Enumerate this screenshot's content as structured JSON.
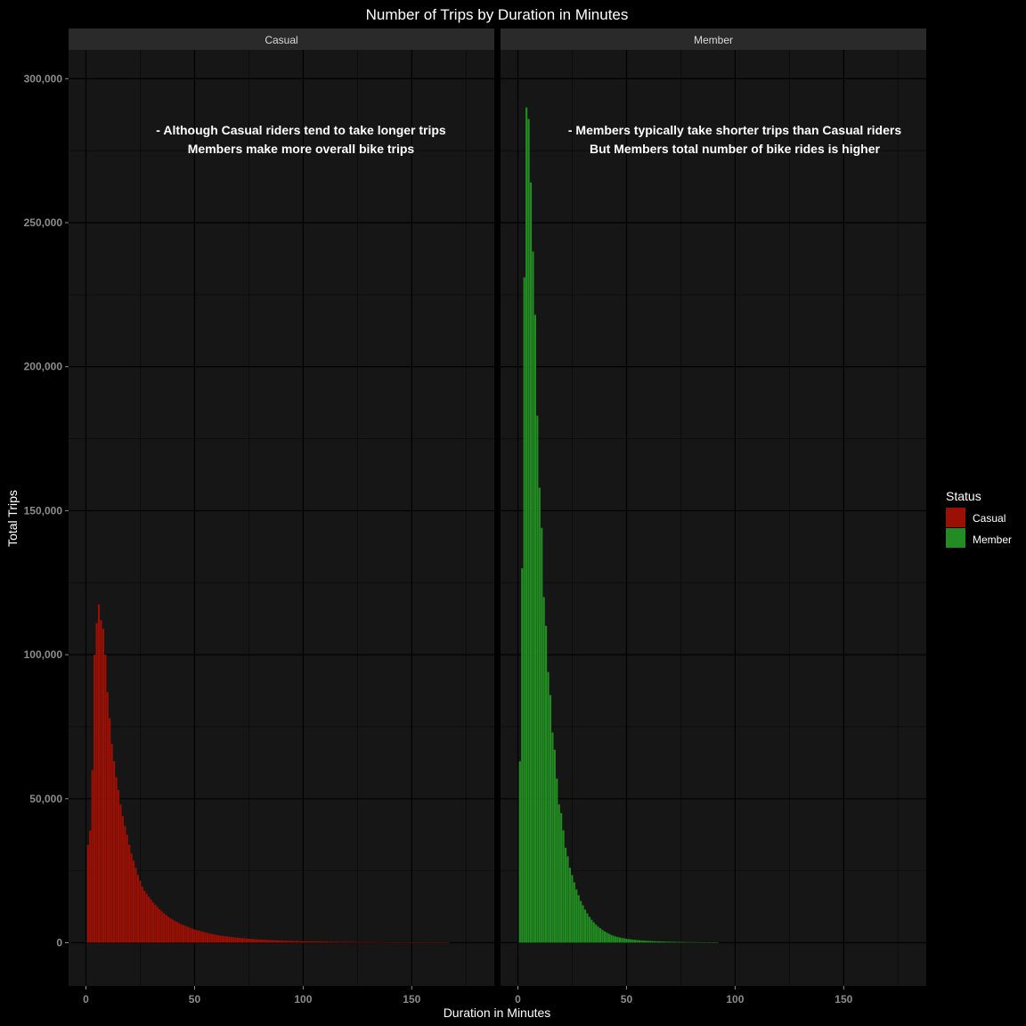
{
  "colors": {
    "background": "#000000",
    "panel": "#161616",
    "strip": "#2a2a2a",
    "grid_major": "#000000",
    "casual": "#9b1004",
    "member": "#228b22"
  },
  "chart_data": {
    "type": "bar",
    "title": "Number of Trips by Duration in Minutes",
    "xlabel": "Duration in Minutes",
    "ylabel": "Total Trips",
    "xlim": [
      -8,
      188
    ],
    "ylim": [
      -15000,
      310000
    ],
    "x_ticks": [
      0,
      50,
      100,
      150
    ],
    "x_tick_labels": [
      "0",
      "50",
      "100",
      "150"
    ],
    "y_ticks": [
      0,
      50000,
      100000,
      150000,
      200000,
      250000,
      300000
    ],
    "y_tick_labels": [
      "0",
      "50,000",
      "100,000",
      "150,000",
      "200,000",
      "250,000",
      "300,000"
    ],
    "grid": true,
    "legend": {
      "title": "Status",
      "position": "right",
      "entries": [
        "Casual",
        "Member"
      ]
    },
    "panels": [
      {
        "name": "Casual",
        "annotation": [
          "- Although Casual riders tend to take longer trips",
          "Members make more overall bike trips"
        ],
        "series_color": "#9b1004",
        "x_start": 1,
        "values": [
          34000,
          39000,
          60000,
          100000,
          111000,
          117500,
          112000,
          109000,
          100000,
          87000,
          78000,
          69000,
          63000,
          57500,
          53000,
          48000,
          44000,
          40500,
          37500,
          34000,
          31000,
          28500,
          26000,
          23500,
          21500,
          19500,
          18000,
          17000,
          16000,
          15000,
          14000,
          13200,
          12400,
          11600,
          10900,
          10200,
          9600,
          9000,
          8500,
          8000,
          7600,
          7200,
          6800,
          6400,
          6100,
          5800,
          5500,
          5200,
          4900,
          4600,
          4400,
          4200,
          4000,
          3800,
          3600,
          3400,
          3200,
          3050,
          2900,
          2750,
          2600,
          2500,
          2400,
          2300,
          2200,
          2100,
          2000,
          1900,
          1820,
          1740,
          1660,
          1590,
          1520,
          1450,
          1390,
          1330,
          1270,
          1210,
          1160,
          1110,
          1060,
          1020,
          980,
          940,
          900,
          860,
          830,
          800,
          770,
          740,
          710,
          685,
          660,
          635,
          610,
          590,
          570,
          550,
          530,
          510,
          495,
          480,
          465,
          450,
          435,
          420,
          408,
          396,
          384,
          372,
          360,
          350,
          340,
          330,
          320,
          310,
          300,
          292,
          284,
          276,
          268,
          260,
          253,
          246,
          239,
          232,
          225,
          219,
          213,
          207,
          201,
          195,
          190,
          185,
          180,
          175,
          170,
          165,
          161,
          157,
          153,
          149,
          145,
          141,
          138,
          135,
          132,
          129,
          126,
          123,
          120,
          117,
          114,
          111,
          108,
          105,
          102,
          99,
          96,
          93,
          90,
          87,
          84,
          81,
          78,
          75,
          72
        ]
      },
      {
        "name": "Member",
        "annotation": [
          "- Members typically take shorter trips than Casual riders",
          "But Members total number of bike rides is higher"
        ],
        "series_color": "#228b22",
        "x_start": 1,
        "values": [
          63000,
          130000,
          231000,
          290000,
          286000,
          264000,
          240000,
          218000,
          183000,
          158000,
          144000,
          120000,
          110000,
          94000,
          86000,
          73000,
          67000,
          57000,
          48000,
          45000,
          39000,
          33000,
          30000,
          26000,
          23500,
          21000,
          18500,
          16500,
          14500,
          13000,
          11500,
          10200,
          9000,
          8000,
          7100,
          6300,
          5600,
          5000,
          4450,
          3950,
          3500,
          3100,
          2750,
          2450,
          2200,
          2000,
          1800,
          1650,
          1500,
          1380,
          1270,
          1170,
          1080,
          1000,
          930,
          860,
          800,
          745,
          695,
          650,
          608,
          570,
          535,
          502,
          472,
          444,
          418,
          394,
          371,
          350,
          330,
          312,
          295,
          279,
          264,
          250,
          237,
          225,
          214,
          204,
          194,
          185,
          176,
          168,
          160,
          153,
          146,
          139,
          133,
          127,
          121,
          116
        ]
      }
    ]
  }
}
